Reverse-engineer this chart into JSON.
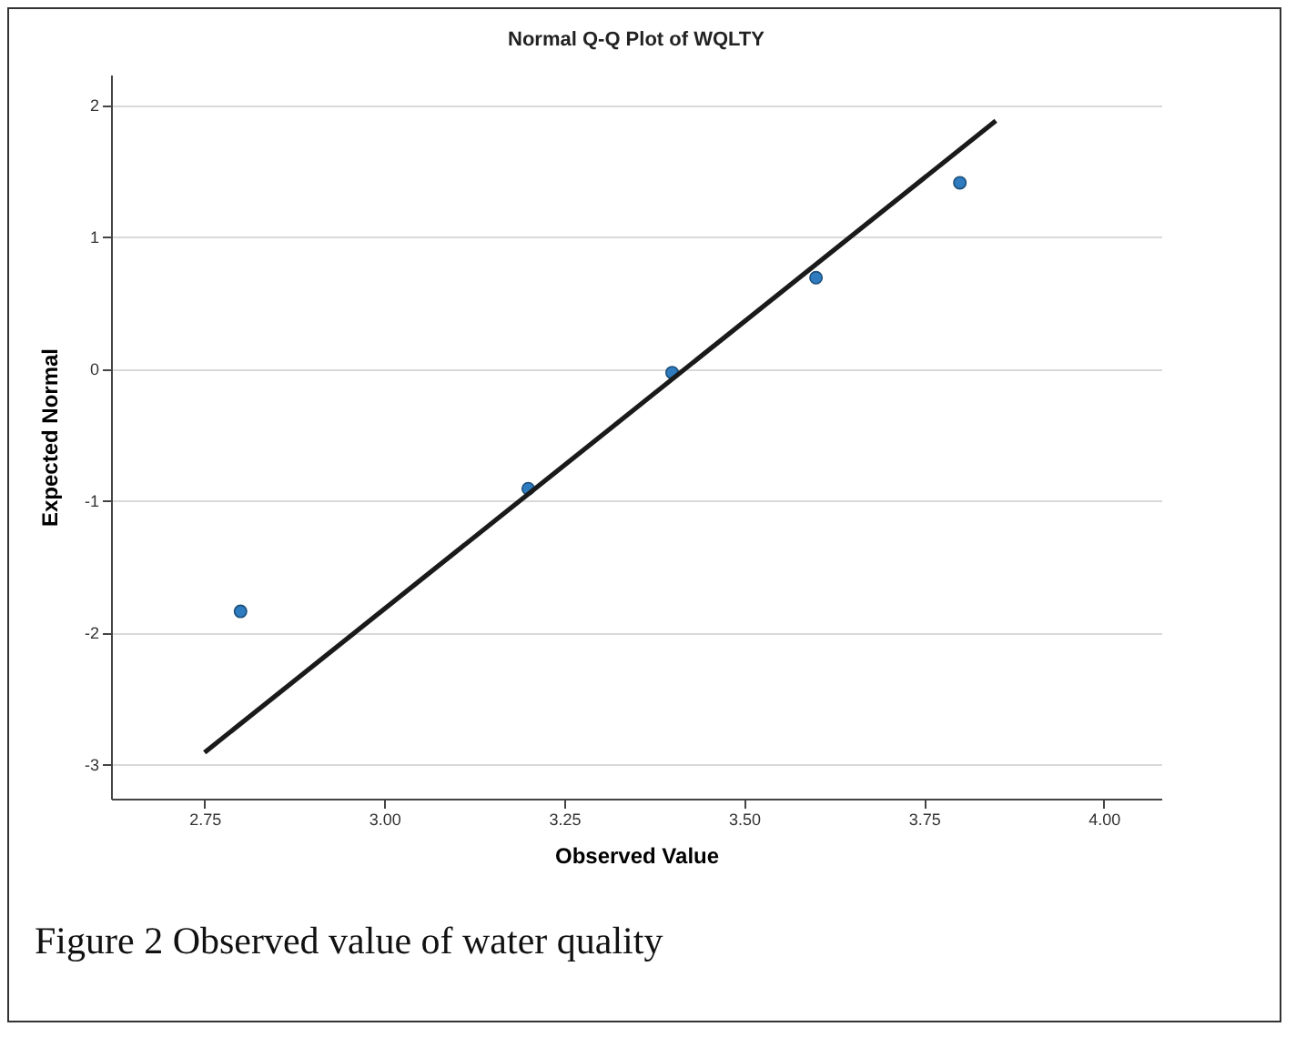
{
  "chart_data": {
    "type": "scatter",
    "title": "Normal Q-Q Plot of WQLTY",
    "xlabel": "Observed Value",
    "ylabel": "Expected Normal",
    "annotations": [
      "Figure 2 Observed value of water quality"
    ],
    "series": [
      {
        "marker": "circle",
        "color": "#2e7bbf",
        "x": [
          2.8,
          3.2,
          3.4,
          3.6,
          3.8
        ],
        "values": [
          -1.84,
          -0.91,
          -0.03,
          0.69,
          1.41
        ]
      },
      {
        "type": "line",
        "color": "#1a1a1a",
        "x": [
          2.75,
          3.85
        ],
        "values": [
          -2.91,
          1.88
        ]
      }
    ],
    "xlim": [
      2.62,
      4.08
    ],
    "ylim": [
      -3.26,
      2.23
    ],
    "xticks": [
      2.75,
      {
        "value": 3,
        "label": "3.00"
      },
      3.25,
      {
        "value": 3.5,
        "label": "3.50"
      },
      3.75,
      {
        "value": 4,
        "label": "4.00"
      }
    ],
    "yticks": [
      -3,
      -2,
      -1,
      0,
      1,
      2
    ],
    "grid": "y",
    "line_style": "solid"
  }
}
